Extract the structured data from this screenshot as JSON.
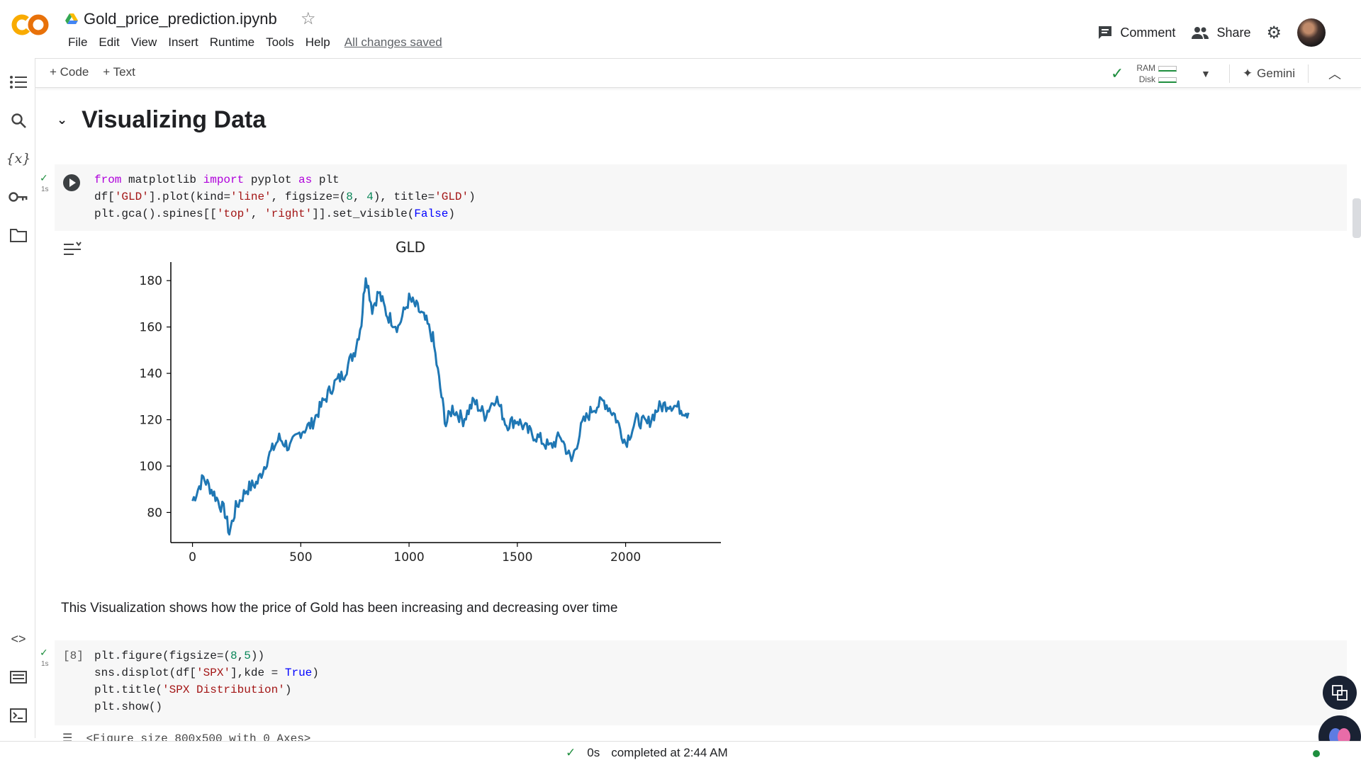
{
  "app": {
    "logo": "CO",
    "file_name": "Gold_price_prediction.ipynb"
  },
  "menu": {
    "items": [
      "File",
      "Edit",
      "View",
      "Insert",
      "Runtime",
      "Tools",
      "Help"
    ],
    "saved_status": "All changes saved"
  },
  "header_actions": {
    "comment": "Comment",
    "share": "Share"
  },
  "toolbar": {
    "add_code": "Code",
    "add_text": "Text",
    "ram_label": "RAM",
    "disk_label": "Disk",
    "gemini": "Gemini"
  },
  "section": {
    "title": "Visualizing Data"
  },
  "cells": {
    "cell1": {
      "exec_time": "1s"
    },
    "cell2": {
      "exec_count": "[8]",
      "exec_time": "1s",
      "output_partial": "<Figure size 800x500 with 0 Axes>"
    }
  },
  "markdown": {
    "text": "This Visualization shows how the price of Gold has been increasing and decreasing over time"
  },
  "status": {
    "elapsed": "0s",
    "completed": "completed at 2:44 AM"
  },
  "colors": {
    "accent_orange": "#f9ab00",
    "line_blue": "#1f77b4",
    "ok_green": "#1e8e3e"
  },
  "chart_data": {
    "type": "line",
    "title": "GLD",
    "xlabel": "",
    "ylabel": "",
    "xlim": [
      -100,
      2440
    ],
    "ylim": [
      67,
      188
    ],
    "x_ticks": [
      0,
      500,
      1000,
      1500,
      2000
    ],
    "y_ticks": [
      80,
      100,
      120,
      140,
      160,
      180
    ],
    "grid": false,
    "series": [
      {
        "x": [
          0,
          50,
          100,
          150,
          170,
          200,
          250,
          300,
          350,
          400,
          450,
          500,
          550,
          600,
          650,
          700,
          750,
          780,
          800,
          830,
          860,
          900,
          950,
          1000,
          1040,
          1080,
          1110,
          1150,
          1170,
          1200,
          1250,
          1300,
          1350,
          1400,
          1450,
          1500,
          1550,
          1600,
          1650,
          1700,
          1750,
          1800,
          1850,
          1900,
          1950,
          2000,
          2050,
          2100,
          2150,
          2200,
          2250,
          2290
        ],
        "y": [
          85,
          95,
          88,
          80,
          71,
          82,
          90,
          93,
          104,
          112,
          108,
          115,
          118,
          127,
          135,
          140,
          150,
          162,
          183,
          168,
          175,
          165,
          160,
          172,
          168,
          162,
          155,
          130,
          118,
          125,
          120,
          128,
          122,
          130,
          118,
          120,
          115,
          112,
          108,
          113,
          102,
          118,
          125,
          128,
          122,
          110,
          120,
          118,
          125,
          127,
          125,
          123
        ]
      }
    ]
  }
}
